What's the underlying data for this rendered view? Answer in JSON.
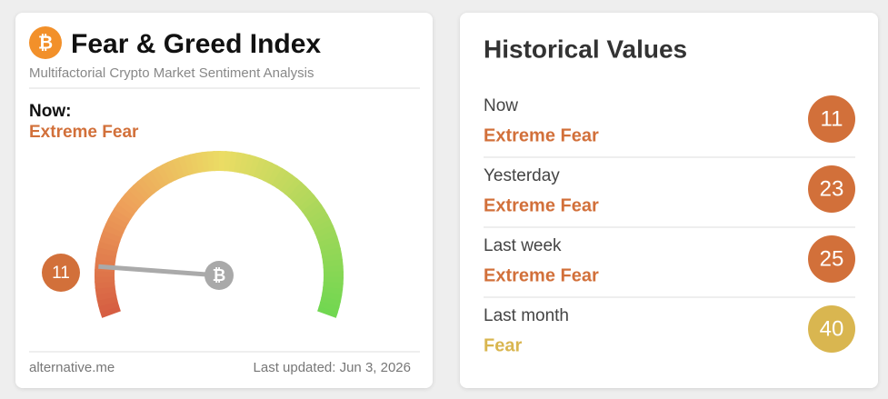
{
  "header": {
    "title": "Fear & Greed Index",
    "subtitle": "Multifactorial Crypto Market Sentiment Analysis"
  },
  "current": {
    "label": "Now:",
    "classification": "Extreme Fear",
    "value": 11,
    "color": "#d2703a"
  },
  "gauge_range": [
    0,
    100
  ],
  "footer": {
    "source": "alternative.me",
    "updated": "Last updated: Jun 3, 2026"
  },
  "history": {
    "title": "Historical Values",
    "items": [
      {
        "period": "Now",
        "classification": "Extreme Fear",
        "value": 11,
        "color": "#d2703a"
      },
      {
        "period": "Yesterday",
        "classification": "Extreme Fear",
        "value": 23,
        "color": "#d2703a"
      },
      {
        "period": "Last week",
        "classification": "Extreme Fear",
        "value": 25,
        "color": "#d2703a"
      },
      {
        "period": "Last month",
        "classification": "Fear",
        "value": 40,
        "color": "#d9b650"
      }
    ]
  }
}
